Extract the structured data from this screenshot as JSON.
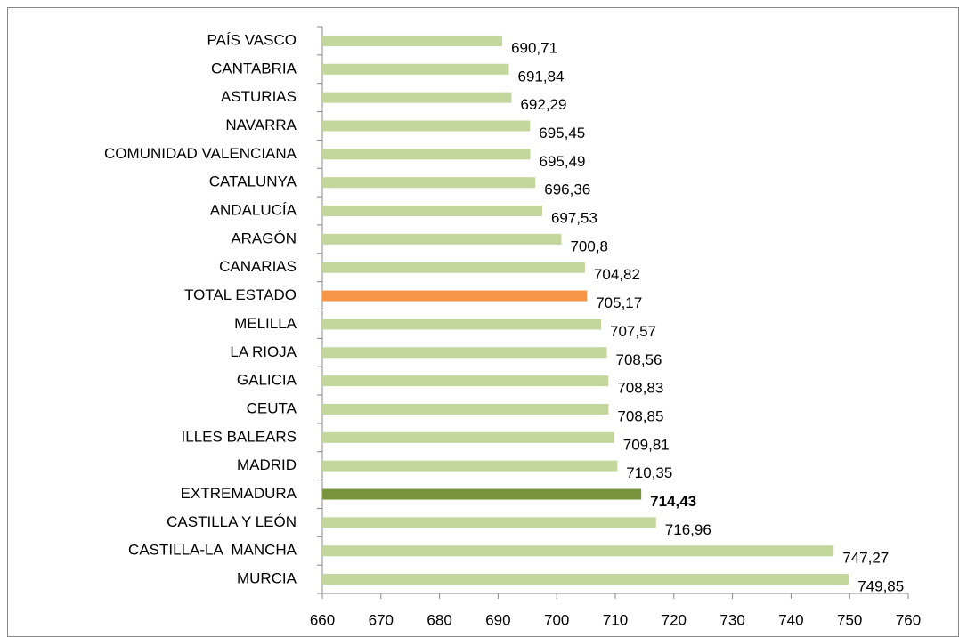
{
  "chart_data": {
    "type": "bar",
    "orientation": "horizontal",
    "categories": [
      "PAÍS VASCO",
      "CANTABRIA",
      "ASTURIAS",
      "NAVARRA",
      "COMUNIDAD VALENCIANA",
      "CATALUNYA",
      "ANDALUCÍA",
      "ARAGÓN",
      "CANARIAS",
      "TOTAL ESTADO",
      "MELILLA",
      "LA RIOJA",
      "GALICIA",
      "CEUTA",
      "ILLES BALEARS",
      "MADRID",
      "EXTREMADURA",
      "CASTILLA Y LEÓN",
      "CASTILLA-LA  MANCHA",
      "MURCIA"
    ],
    "values": [
      690.71,
      691.84,
      692.29,
      695.45,
      695.49,
      696.36,
      697.53,
      700.8,
      704.82,
      705.17,
      707.57,
      708.56,
      708.83,
      708.85,
      709.81,
      710.35,
      714.43,
      716.96,
      747.27,
      749.85
    ],
    "value_labels": [
      "690,71",
      "691,84",
      "692,29",
      "695,45",
      "695,49",
      "696,36",
      "697,53",
      "700,8",
      "704,82",
      "705,17",
      "707,57",
      "708,56",
      "708,83",
      "708,85",
      "709,81",
      "710,35",
      "714,43",
      "716,96",
      "747,27",
      "749,85"
    ],
    "colors": [
      "#c3d69b",
      "#c3d69b",
      "#c3d69b",
      "#c3d69b",
      "#c3d69b",
      "#c3d69b",
      "#c3d69b",
      "#c3d69b",
      "#c3d69b",
      "#f79646",
      "#c3d69b",
      "#c3d69b",
      "#c3d69b",
      "#c3d69b",
      "#c3d69b",
      "#c3d69b",
      "#77933c",
      "#c3d69b",
      "#c3d69b",
      "#c3d69b"
    ],
    "bold_value_labels": [
      16
    ],
    "xlim": [
      660,
      760
    ],
    "xticks": [
      660,
      670,
      680,
      690,
      700,
      710,
      720,
      730,
      740,
      750,
      760
    ],
    "grid": false
  }
}
